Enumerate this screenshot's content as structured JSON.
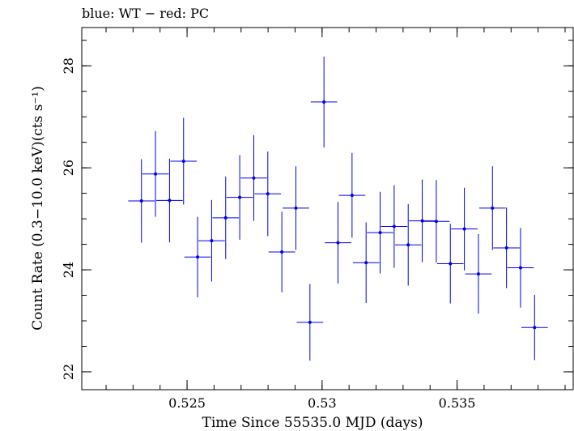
{
  "chart_data": {
    "type": "scatter",
    "title": "blue: WT − red: PC",
    "xlabel": "Time Since 55535.0 MJD (days)",
    "ylabel": "Count Rate (0.3−10.0 keV)(cts s⁻¹)",
    "xlim": [
      0.5211,
      0.5393
    ],
    "ylim": [
      21.65,
      28.75
    ],
    "x_ticks": [
      0.525,
      0.53,
      0.535
    ],
    "x_tick_labels": [
      "0.525",
      "0.53",
      "0.535"
    ],
    "y_ticks": [
      22,
      24,
      26,
      28
    ],
    "y_tick_labels": [
      "22",
      "24",
      "26",
      "28"
    ],
    "x_minor_step": 0.001,
    "y_minor_step": 0.5,
    "grid": false,
    "series": [
      {
        "color": "#0000ee",
        "points": [
          {
            "x": 0.52331,
            "xerr": 0.00049,
            "y": 25.35,
            "yerr": 0.82
          },
          {
            "x": 0.52383,
            "xerr": 0.00049,
            "y": 25.88,
            "yerr": 0.84
          },
          {
            "x": 0.52435,
            "xerr": 0.00049,
            "y": 25.36,
            "yerr": 0.82
          },
          {
            "x": 0.52487,
            "xerr": 0.00049,
            "y": 26.13,
            "yerr": 0.85
          },
          {
            "x": 0.52539,
            "xerr": 0.00049,
            "y": 24.25,
            "yerr": 0.79
          },
          {
            "x": 0.52591,
            "xerr": 0.00049,
            "y": 24.57,
            "yerr": 0.8
          },
          {
            "x": 0.52643,
            "xerr": 0.00049,
            "y": 25.02,
            "yerr": 0.81
          },
          {
            "x": 0.52695,
            "xerr": 0.00049,
            "y": 25.42,
            "yerr": 0.83
          },
          {
            "x": 0.52747,
            "xerr": 0.00049,
            "y": 25.8,
            "yerr": 0.84
          },
          {
            "x": 0.52799,
            "xerr": 0.00049,
            "y": 25.49,
            "yerr": 0.83
          },
          {
            "x": 0.52851,
            "xerr": 0.00049,
            "y": 24.35,
            "yerr": 0.79
          },
          {
            "x": 0.52903,
            "xerr": 0.00049,
            "y": 25.21,
            "yerr": 0.82
          },
          {
            "x": 0.52955,
            "xerr": 0.00049,
            "y": 22.97,
            "yerr": 0.75
          },
          {
            "x": 0.53007,
            "xerr": 0.00049,
            "y": 27.29,
            "yerr": 0.89
          },
          {
            "x": 0.53059,
            "xerr": 0.00049,
            "y": 24.53,
            "yerr": 0.8
          },
          {
            "x": 0.53111,
            "xerr": 0.00049,
            "y": 25.46,
            "yerr": 0.83
          },
          {
            "x": 0.53163,
            "xerr": 0.00049,
            "y": 24.14,
            "yerr": 0.79
          },
          {
            "x": 0.53215,
            "xerr": 0.00049,
            "y": 24.73,
            "yerr": 0.8
          },
          {
            "x": 0.53267,
            "xerr": 0.00049,
            "y": 24.85,
            "yerr": 0.81
          },
          {
            "x": 0.53319,
            "xerr": 0.00049,
            "y": 24.49,
            "yerr": 0.8
          },
          {
            "x": 0.53371,
            "xerr": 0.00049,
            "y": 24.96,
            "yerr": 0.81
          },
          {
            "x": 0.53423,
            "xerr": 0.00049,
            "y": 24.95,
            "yerr": 0.81
          },
          {
            "x": 0.53475,
            "xerr": 0.00049,
            "y": 24.12,
            "yerr": 0.78
          },
          {
            "x": 0.53527,
            "xerr": 0.00049,
            "y": 24.8,
            "yerr": 0.81
          },
          {
            "x": 0.53579,
            "xerr": 0.00049,
            "y": 23.92,
            "yerr": 0.78
          },
          {
            "x": 0.53631,
            "xerr": 0.00049,
            "y": 25.21,
            "yerr": 0.82
          },
          {
            "x": 0.53683,
            "xerr": 0.00049,
            "y": 24.43,
            "yerr": 0.79
          },
          {
            "x": 0.53735,
            "xerr": 0.00049,
            "y": 24.04,
            "yerr": 0.78
          },
          {
            "x": 0.53787,
            "xerr": 0.00049,
            "y": 22.87,
            "yerr": 0.64
          }
        ]
      }
    ]
  }
}
